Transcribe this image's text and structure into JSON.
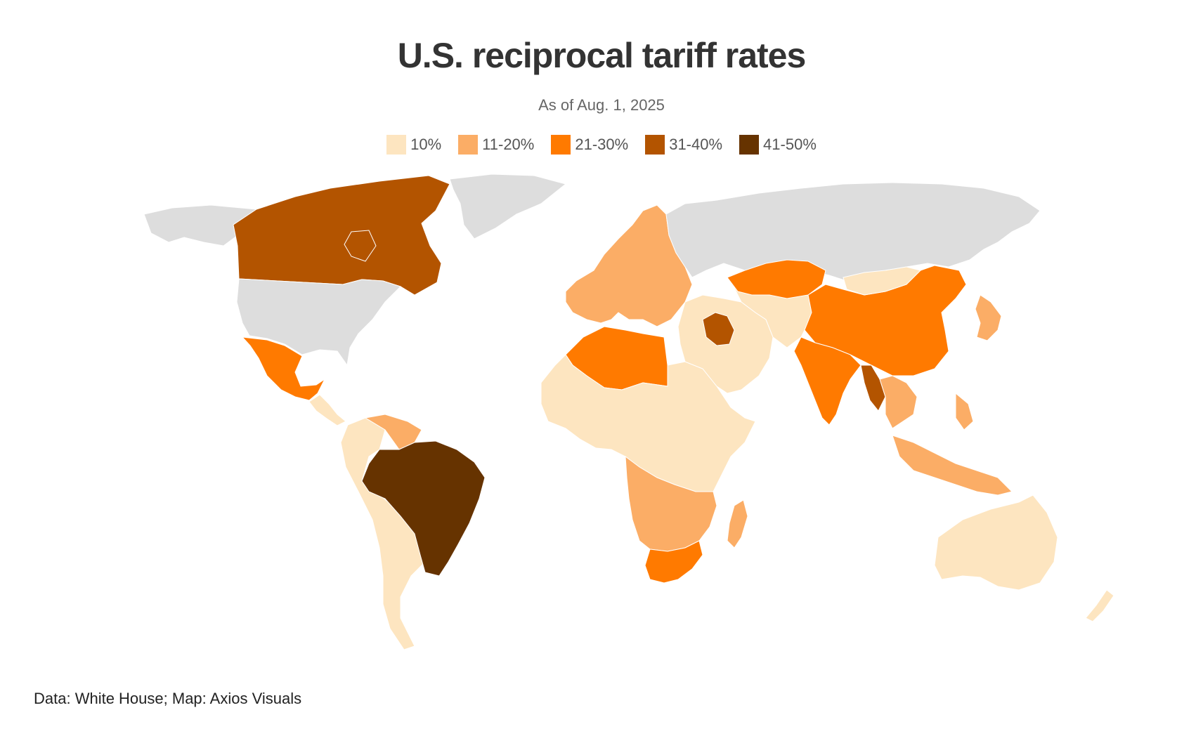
{
  "title": "U.S. reciprocal tariff rates",
  "subtitle": "As of Aug. 1, 2025",
  "legend": [
    {
      "label": "10%",
      "color": "#fde5c0"
    },
    {
      "label": "11-20%",
      "color": "#fbad66"
    },
    {
      "label": "21-30%",
      "color": "#ff7a00"
    },
    {
      "label": "31-40%",
      "color": "#b35400"
    },
    {
      "label": "41-50%",
      "color": "#663300"
    }
  ],
  "no_data_color": "#dddddd",
  "source": "Data: White House; Map: Axios Visuals",
  "regions": [
    {
      "name": "alaska",
      "category": "none"
    },
    {
      "name": "canada",
      "category": "31-40%"
    },
    {
      "name": "greenland",
      "category": "none"
    },
    {
      "name": "united-states",
      "category": "none"
    },
    {
      "name": "mexico",
      "category": "21-30%"
    },
    {
      "name": "central-america",
      "category": "10%"
    },
    {
      "name": "south-america",
      "category": "10%"
    },
    {
      "name": "brazil",
      "category": "41-50%"
    },
    {
      "name": "guyana-venezuela",
      "category": "11-20%"
    },
    {
      "name": "western-europe",
      "category": "11-20%"
    },
    {
      "name": "russia",
      "category": "none"
    },
    {
      "name": "north-africa",
      "category": "21-30%"
    },
    {
      "name": "africa",
      "category": "10%"
    },
    {
      "name": "southern-africa",
      "category": "11-20%"
    },
    {
      "name": "south-africa",
      "category": "21-30%"
    },
    {
      "name": "madagascar",
      "category": "11-20%"
    },
    {
      "name": "middle-east",
      "category": "10%"
    },
    {
      "name": "syria-iraq",
      "category": "31-40%"
    },
    {
      "name": "central-asia",
      "category": "10%"
    },
    {
      "name": "kazakhstan",
      "category": "21-30%"
    },
    {
      "name": "china",
      "category": "21-30%"
    },
    {
      "name": "mongolia",
      "category": "10%"
    },
    {
      "name": "india",
      "category": "21-30%"
    },
    {
      "name": "myanmar",
      "category": "31-40%"
    },
    {
      "name": "southeast-asia",
      "category": "11-20%"
    },
    {
      "name": "japan",
      "category": "11-20%"
    },
    {
      "name": "indonesia",
      "category": "11-20%"
    },
    {
      "name": "australia",
      "category": "10%"
    },
    {
      "name": "new-zealand",
      "category": "10%"
    }
  ]
}
